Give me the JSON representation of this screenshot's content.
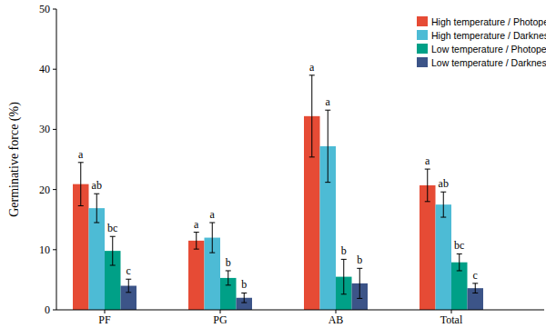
{
  "chart_data": {
    "type": "bar",
    "y_label": "Germinative force (%)",
    "categories": [
      "PF",
      "PG",
      "AB",
      "Total"
    ],
    "ylim": [
      0,
      50
    ],
    "yticks": [
      0,
      10,
      20,
      30,
      40,
      50
    ],
    "grid": false,
    "legend": "top-right",
    "series": [
      {
        "name": "High temperature / Photoperiod",
        "color": "#e64b35",
        "values": [
          20.9,
          11.5,
          32.2,
          20.7
        ],
        "errors": [
          3.6,
          1.4,
          6.8,
          2.7
        ],
        "letters": [
          "a",
          "a",
          "a",
          "a"
        ]
      },
      {
        "name": "High temperature / Darkness",
        "color": "#4dbbd5",
        "values": [
          16.9,
          12.0,
          27.2,
          17.5
        ],
        "errors": [
          2.4,
          2.5,
          6.0,
          2.1
        ],
        "letters": [
          "ab",
          "a",
          "a",
          "ab"
        ]
      },
      {
        "name": "Low temperature / Photoperiod",
        "color": "#00a087",
        "values": [
          9.8,
          5.3,
          5.5,
          7.9
        ],
        "errors": [
          2.4,
          1.2,
          2.9,
          1.4
        ],
        "letters": [
          "bc",
          "b",
          "b",
          "bc"
        ]
      },
      {
        "name": "Low temperature / Darkness",
        "color": "#3c5488",
        "values": [
          4.0,
          2.0,
          4.4,
          3.6
        ],
        "errors": [
          1.1,
          0.8,
          2.5,
          0.8
        ],
        "letters": [
          "c",
          "b",
          "b",
          "c"
        ]
      }
    ]
  }
}
